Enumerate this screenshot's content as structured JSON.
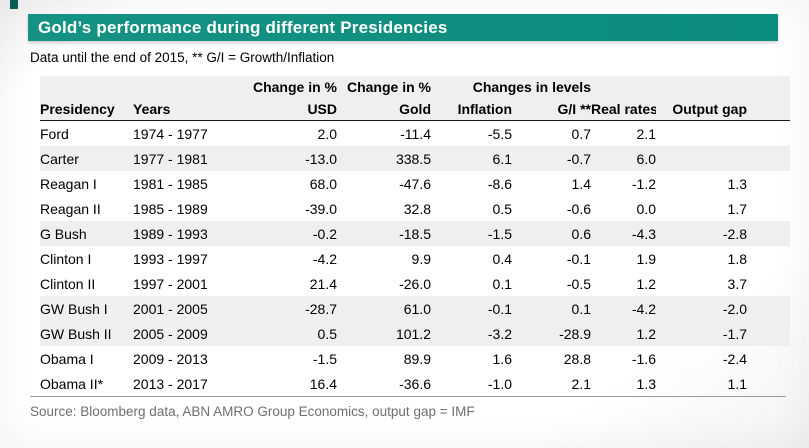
{
  "colors": {
    "banner_bg": "#119081",
    "corner_square": "#0a5d53",
    "header_band_bg": "#efeff0",
    "row_shaded_bg": "#efefef",
    "header_underline": "#1a1a1a",
    "bottom_rule": "#9b9b9b",
    "source_text": "#6f6f6f",
    "title_text": "#ffffff"
  },
  "header": {
    "title": "Gold’s performance during different Presidencies",
    "subtitle": "Data until the end of 2015, ** G/I = Growth/Inflation"
  },
  "footer": {
    "source": "Source: Bloomberg data, ABN AMRO Group Economics, output gap = IMF"
  },
  "chart_data": {
    "type": "table",
    "title": "Gold’s performance during different Presidencies",
    "subtitle": "Data until the end of 2015, ** G/I = Growth/Inflation",
    "source": "Source: Bloomberg data, ABN AMRO Group Economics, output gap = IMF",
    "spanners": [
      "Change in %",
      "Change in %",
      "Changes in levels"
    ],
    "columns": [
      "Presidency",
      "Years",
      "USD",
      "Gold",
      "Inflation",
      "G/I **",
      "Real rates",
      "Output gap"
    ],
    "rows": [
      {
        "presidency": "Ford",
        "years": "1974 - 1977",
        "usd": "2.0",
        "gold": "-11.4",
        "inflation": "-5.5",
        "gi": "0.7",
        "real_rates": "2.1",
        "output_gap": "",
        "shaded": false
      },
      {
        "presidency": "Carter",
        "years": "1977 - 1981",
        "usd": "-13.0",
        "gold": "338.5",
        "inflation": "6.1",
        "gi": "-0.7",
        "real_rates": "6.0",
        "output_gap": "",
        "shaded": true
      },
      {
        "presidency": "Reagan I",
        "years": "1981 - 1985",
        "usd": "68.0",
        "gold": "-47.6",
        "inflation": "-8.6",
        "gi": "1.4",
        "real_rates": "-1.2",
        "output_gap": "1.3",
        "shaded": false
      },
      {
        "presidency": "Reagan II",
        "years": "1985 - 1989",
        "usd": "-39.0",
        "gold": "32.8",
        "inflation": "0.5",
        "gi": "-0.6",
        "real_rates": "0.0",
        "output_gap": "1.7",
        "shaded": false
      },
      {
        "presidency": "G Bush",
        "years": "1989 - 1993",
        "usd": "-0.2",
        "gold": "-18.5",
        "inflation": "-1.5",
        "gi": "0.6",
        "real_rates": "-4.3",
        "output_gap": "-2.8",
        "shaded": true
      },
      {
        "presidency": "Clinton I",
        "years": "1993 - 1997",
        "usd": "-4.2",
        "gold": "9.9",
        "inflation": "0.4",
        "gi": "-0.1",
        "real_rates": "1.9",
        "output_gap": "1.8",
        "shaded": false
      },
      {
        "presidency": "Clinton II",
        "years": "1997 - 2001",
        "usd": "21.4",
        "gold": "-26.0",
        "inflation": "0.1",
        "gi": "-0.5",
        "real_rates": "1.2",
        "output_gap": "3.7",
        "shaded": false
      },
      {
        "presidency": "GW Bush I",
        "years": "2001 - 2005",
        "usd": "-28.7",
        "gold": "61.0",
        "inflation": "-0.1",
        "gi": "0.1",
        "real_rates": "-4.2",
        "output_gap": "-2.0",
        "shaded": true
      },
      {
        "presidency": "GW Bush II",
        "years": "2005 - 2009",
        "usd": "0.5",
        "gold": "101.2",
        "inflation": "-3.2",
        "gi": "-28.9",
        "real_rates": "1.2",
        "output_gap": "-1.7",
        "shaded": true
      },
      {
        "presidency": "Obama I",
        "years": "2009 - 2013",
        "usd": "-1.5",
        "gold": "89.9",
        "inflation": "1.6",
        "gi": "28.8",
        "real_rates": "-1.6",
        "output_gap": "-2.4",
        "shaded": false
      },
      {
        "presidency": "Obama II*",
        "years": "2013 - 2017",
        "usd": "16.4",
        "gold": "-36.6",
        "inflation": "-1.0",
        "gi": "2.1",
        "real_rates": "1.3",
        "output_gap": "1.1",
        "shaded": false
      }
    ]
  }
}
